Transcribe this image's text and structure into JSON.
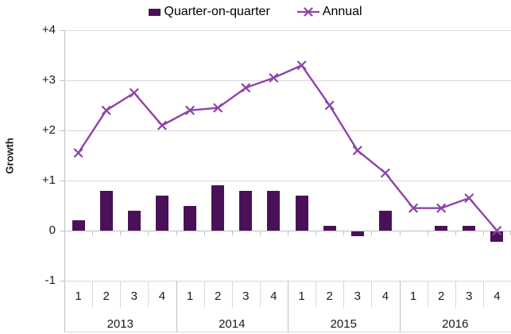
{
  "chart_data": {
    "type": "combo bar+line",
    "title": "",
    "xlabel": "",
    "ylabel": "Growth",
    "ylim": [
      -1,
      4
    ],
    "ytick_labels": [
      "+4",
      "+3",
      "+2",
      "+1",
      "0",
      "-1"
    ],
    "ytick_values": [
      4,
      3,
      2,
      1,
      0,
      -1
    ],
    "grid": true,
    "legend_position": "top-center",
    "years": [
      "2013",
      "2014",
      "2015",
      "2016"
    ],
    "quarters_per_year": [
      "1",
      "2",
      "3",
      "4"
    ],
    "categories": [
      "2013 Q1",
      "2013 Q2",
      "2013 Q3",
      "2013 Q4",
      "2014 Q1",
      "2014 Q2",
      "2014 Q3",
      "2014 Q4",
      "2015 Q1",
      "2015 Q2",
      "2015 Q3",
      "2015 Q4",
      "2016 Q1",
      "2016 Q2",
      "2016 Q3",
      "2016 Q4"
    ],
    "series": [
      {
        "name": "Quarter-on-quarter",
        "type": "bar",
        "color": "#4a1159",
        "values": [
          0.2,
          0.8,
          0.4,
          0.7,
          0.5,
          0.9,
          0.8,
          0.8,
          0.7,
          0.1,
          -0.1,
          0.4,
          0.0,
          0.1,
          0.1,
          -0.2
        ]
      },
      {
        "name": "Annual",
        "type": "line",
        "marker": "x",
        "color": "#8e44a8",
        "values": [
          1.55,
          2.4,
          2.75,
          2.1,
          2.4,
          2.45,
          2.85,
          3.05,
          3.3,
          2.5,
          1.6,
          1.15,
          0.45,
          0.45,
          0.65,
          0.0
        ]
      }
    ],
    "colors": {
      "gridline": "#d9d9d9",
      "axis": "#bfbfbf",
      "text": "#1a1a1a"
    }
  }
}
